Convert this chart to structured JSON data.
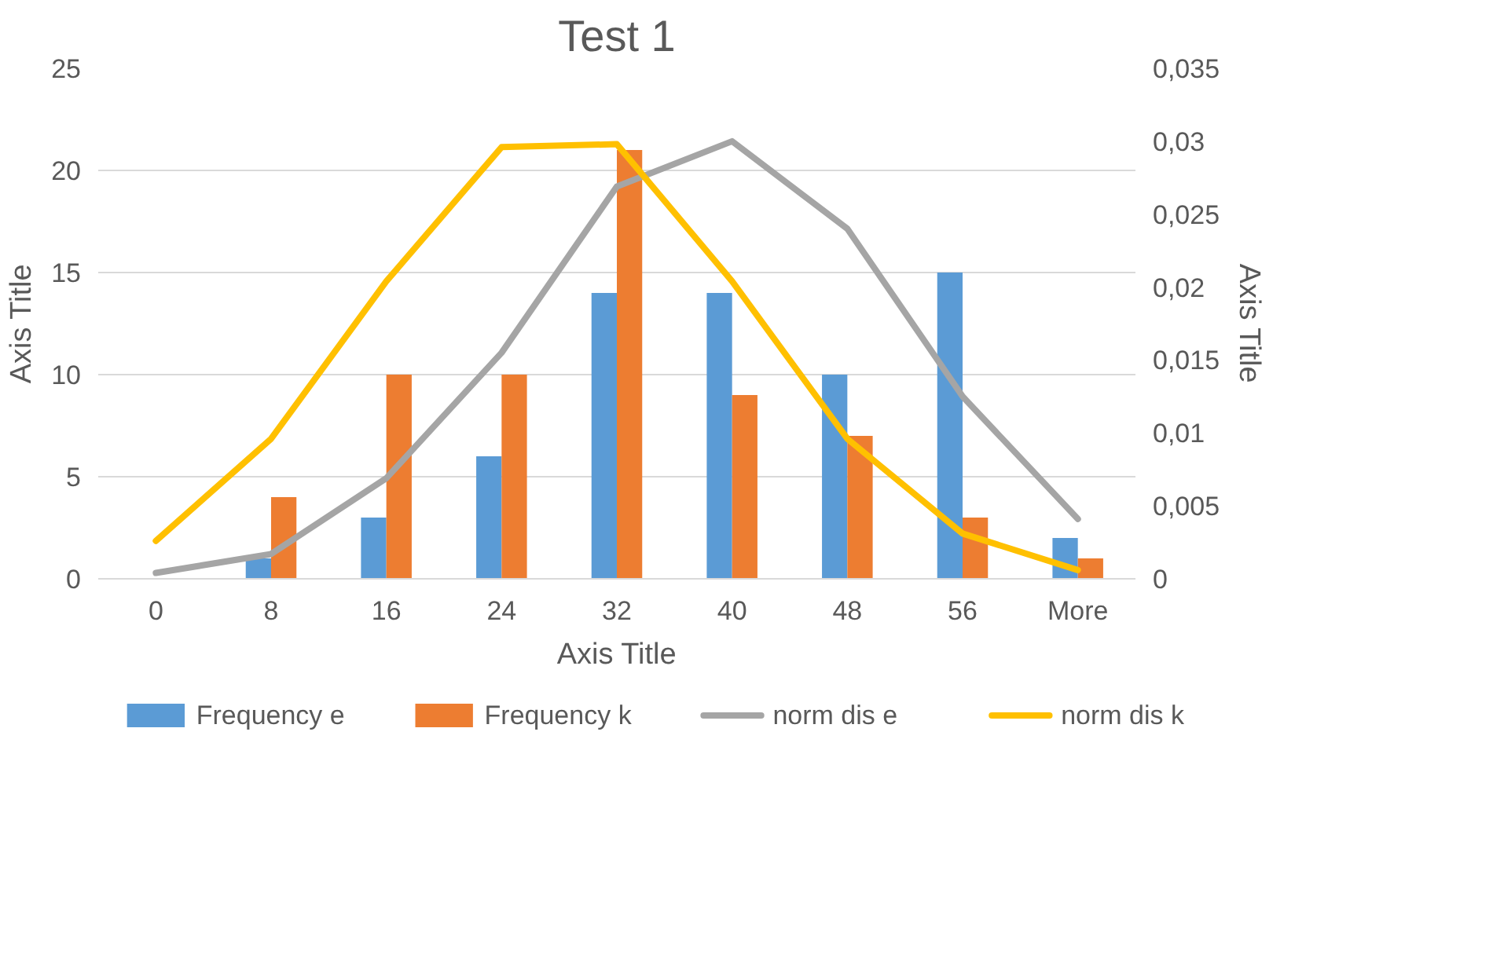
{
  "chart_data": {
    "type": "bar",
    "title": "Test 1",
    "xlabel": "Axis Title",
    "ylabel": "Axis Title",
    "y2label": "Axis Title",
    "categories": [
      "0",
      "8",
      "16",
      "24",
      "32",
      "40",
      "48",
      "56",
      "More"
    ],
    "series": [
      {
        "name": "Frequency e",
        "color": "#5b9bd5",
        "values": [
          0,
          1,
          3,
          6,
          14,
          14,
          10,
          15,
          2
        ]
      },
      {
        "name": "Frequency k",
        "color": "#ed7d31",
        "values": [
          0,
          4,
          10,
          10,
          21,
          9,
          7,
          3,
          1
        ]
      },
      {
        "name": "norm dis e",
        "type": "line",
        "axis": "y2",
        "color": "#a5a5a5",
        "values": [
          0.0004,
          0.0017,
          0.0069,
          0.0155,
          0.0269,
          0.03,
          0.024,
          0.0125,
          0.0041
        ]
      },
      {
        "name": "norm dis k",
        "type": "line",
        "axis": "y2",
        "color": "#ffc000",
        "values": [
          0.0026,
          0.0096,
          0.0204,
          0.0296,
          0.0298,
          0.0204,
          0.0096,
          0.0031,
          0.0006
        ]
      }
    ],
    "ylim": [
      0,
      25
    ],
    "yticks": [
      0,
      5,
      10,
      15,
      20,
      25
    ],
    "y2lim": [
      0,
      0.035
    ],
    "y2ticks": [
      0,
      {
        "value": 0.005,
        "label": "0,005"
      },
      {
        "value": 0.01,
        "label": "0,01"
      },
      {
        "value": 0.015,
        "label": "0,015"
      },
      {
        "value": 0.02,
        "label": "0,02"
      },
      {
        "value": 0.025,
        "label": "0,025"
      },
      {
        "value": 0.03,
        "label": "0,03"
      },
      {
        "value": 0.035,
        "label": "0,035"
      }
    ],
    "grid": "y",
    "legend": "bottom"
  }
}
